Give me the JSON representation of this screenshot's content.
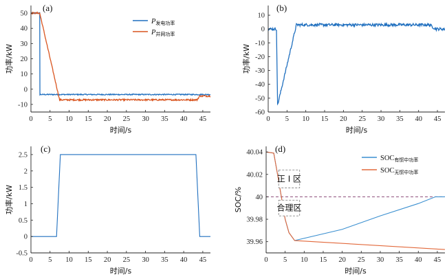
{
  "colors": {
    "blue": "#1f6fbf",
    "orange": "#d9541e",
    "axis": "#222222",
    "dashed": "#8b4a78"
  },
  "chart_data": [
    {
      "panel": "(a)",
      "type": "line",
      "xlabel": "时间/s",
      "ylabel": "功率/kW",
      "xlim": [
        0,
        47
      ],
      "ylim": [
        -15,
        55
      ],
      "xticks": [
        0,
        5,
        10,
        15,
        20,
        25,
        30,
        35,
        40,
        45
      ],
      "yticks": [
        -10,
        0,
        10,
        20,
        30,
        40,
        50
      ],
      "legend_position": "top-right",
      "series": [
        {
          "name_main": "P",
          "name_sub": "发电功率",
          "color": "#1f6fbf",
          "noise": 0.35,
          "points": [
            [
              0,
              50
            ],
            [
              2.3,
              50
            ],
            [
              2.35,
              -3.5
            ],
            [
              47,
              -3.5
            ]
          ]
        },
        {
          "name_main": "P",
          "name_sub": "并网功率",
          "color": "#d9541e",
          "noise": 0.5,
          "points": [
            [
              0,
              50
            ],
            [
              2.3,
              50
            ],
            [
              7.5,
              -7
            ],
            [
              43.5,
              -7
            ],
            [
              44.2,
              -4.5
            ],
            [
              47,
              -4.5
            ]
          ]
        }
      ]
    },
    {
      "panel": "(b)",
      "type": "line",
      "xlabel": "时间/s",
      "ylabel": "功率/kW",
      "xlim": [
        0,
        47
      ],
      "ylim": [
        -60,
        17
      ],
      "xticks": [
        0,
        5,
        10,
        15,
        20,
        25,
        30,
        35,
        40,
        45
      ],
      "yticks": [
        -60,
        -50,
        -40,
        -30,
        -20,
        -10,
        0,
        10
      ],
      "series": [
        {
          "name": "",
          "color": "#1f6fbf",
          "noise": 1.0,
          "points": [
            [
              0,
              0
            ],
            [
              2.2,
              0
            ],
            [
              2.5,
              -55
            ],
            [
              7.5,
              3
            ],
            [
              43,
              3
            ],
            [
              44.5,
              0
            ],
            [
              47,
              0
            ]
          ]
        }
      ]
    },
    {
      "panel": "(c)",
      "type": "line",
      "xlabel": "时间/s",
      "ylabel": "功率/kW",
      "xlim": [
        0,
        47
      ],
      "ylim": [
        -0.5,
        2.75
      ],
      "xticks": [
        0,
        5,
        10,
        15,
        20,
        25,
        30,
        35,
        40,
        45
      ],
      "yticks": [
        -0.5,
        0,
        0.5,
        1,
        1.5,
        2,
        2.5
      ],
      "series": [
        {
          "name": "",
          "color": "#1f6fbf",
          "noise": 0,
          "points": [
            [
              0,
              0
            ],
            [
              6.7,
              0
            ],
            [
              7.7,
              2.5
            ],
            [
              43.2,
              2.5
            ],
            [
              44.2,
              0
            ],
            [
              47,
              0
            ]
          ]
        }
      ]
    },
    {
      "panel": "(d)",
      "type": "line",
      "xlabel": "时间/s",
      "ylabel": "SOC/%",
      "xlim": [
        0,
        47
      ],
      "ylim": [
        39.95,
        40.045
      ],
      "xticks": [
        0,
        5,
        10,
        15,
        20,
        25,
        30,
        35,
        40,
        45
      ],
      "yticks": [
        39.96,
        39.98,
        40.0,
        40.02,
        40.04
      ],
      "legend_position": "top-right",
      "reference_line": 40.0,
      "regions": [
        {
          "label": "正 I 区",
          "x0": 3.3,
          "x1": 8.8,
          "y0": 40.024,
          "y1": 40.008
        },
        {
          "label": "合理区",
          "x0": 3.3,
          "x1": 8.8,
          "y0": 39.997,
          "y1": 39.983
        }
      ],
      "series": [
        {
          "name_main": "SOC",
          "name_sub": "有惯中功率",
          "color": "#3a8fd0",
          "noise": 0,
          "points": [
            [
              0,
              40.04
            ],
            [
              2,
              40.039
            ],
            [
              3,
              40.02
            ],
            [
              4,
              40.0
            ],
            [
              5,
              39.98
            ],
            [
              6,
              39.968
            ],
            [
              7.5,
              39.961
            ],
            [
              20,
              39.971
            ],
            [
              30,
              39.983
            ],
            [
              40,
              39.994
            ],
            [
              44.5,
              40.0
            ],
            [
              47,
              40.0
            ]
          ]
        },
        {
          "name_main": "SOC",
          "name_sub": "无惯中功率",
          "color": "#e2683a",
          "noise": 0,
          "points": [
            [
              0,
              40.04
            ],
            [
              2,
              40.039
            ],
            [
              3,
              40.02
            ],
            [
              4,
              40.0
            ],
            [
              5,
              39.98
            ],
            [
              6,
              39.968
            ],
            [
              7.5,
              39.961
            ],
            [
              47,
              39.953
            ]
          ]
        }
      ]
    }
  ]
}
